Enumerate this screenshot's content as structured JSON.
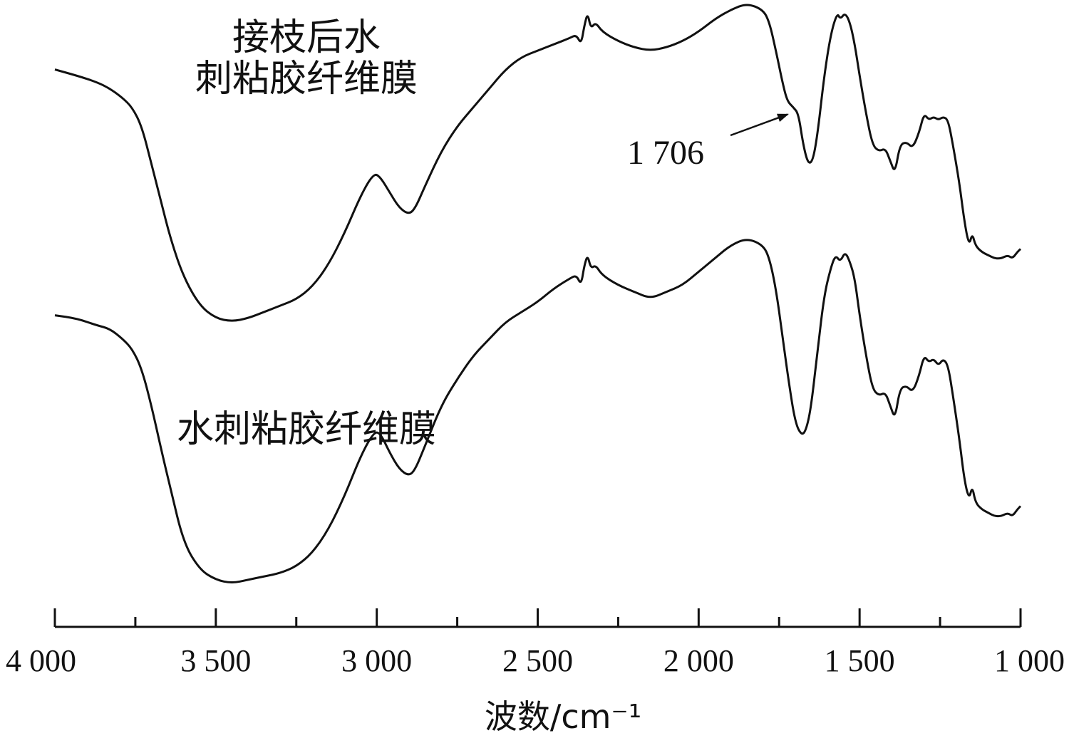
{
  "chart_data": {
    "type": "line",
    "xlabel": "波数/cm⁻¹",
    "xlim": [
      4000,
      1000
    ],
    "x_reversed": true,
    "x_ticks": [
      {
        "value": 4000,
        "label": "4 000"
      },
      {
        "value": 3500,
        "label": "3 500"
      },
      {
        "value": 3000,
        "label": "3 000"
      },
      {
        "value": 2500,
        "label": "2 500"
      },
      {
        "value": 2000,
        "label": "2 000"
      },
      {
        "value": 1500,
        "label": "1 500"
      },
      {
        "value": 1000,
        "label": "1 000"
      }
    ],
    "x_minor_ticks": [
      3750,
      3250,
      2750,
      2250,
      1750,
      1250
    ],
    "y_axis_shown": false,
    "grid": false,
    "series": [
      {
        "name": "接枝后水刺粘胶纤维膜",
        "label_lines": [
          "接枝后水",
          "刺粘胶纤维膜"
        ],
        "color": "#111111",
        "points": [
          [
            4000,
            0.82
          ],
          [
            3930,
            0.8
          ],
          [
            3870,
            0.78
          ],
          [
            3830,
            0.76
          ],
          [
            3790,
            0.73
          ],
          [
            3760,
            0.7
          ],
          [
            3730,
            0.64
          ],
          [
            3700,
            0.52
          ],
          [
            3670,
            0.4
          ],
          [
            3640,
            0.28
          ],
          [
            3600,
            0.16
          ],
          [
            3550,
            0.07
          ],
          [
            3500,
            0.03
          ],
          [
            3450,
            0.02
          ],
          [
            3400,
            0.03
          ],
          [
            3350,
            0.05
          ],
          [
            3300,
            0.07
          ],
          [
            3250,
            0.09
          ],
          [
            3200,
            0.13
          ],
          [
            3150,
            0.2
          ],
          [
            3100,
            0.3
          ],
          [
            3050,
            0.42
          ],
          [
            3010,
            0.49
          ],
          [
            2990,
            0.48
          ],
          [
            2960,
            0.43
          ],
          [
            2930,
            0.38
          ],
          [
            2900,
            0.36
          ],
          [
            2880,
            0.38
          ],
          [
            2850,
            0.45
          ],
          [
            2800,
            0.56
          ],
          [
            2750,
            0.64
          ],
          [
            2700,
            0.7
          ],
          [
            2650,
            0.76
          ],
          [
            2600,
            0.82
          ],
          [
            2550,
            0.86
          ],
          [
            2500,
            0.88
          ],
          [
            2450,
            0.9
          ],
          [
            2400,
            0.92
          ],
          [
            2380,
            0.93
          ],
          [
            2365,
            0.9
          ],
          [
            2355,
            0.96
          ],
          [
            2345,
            1.0
          ],
          [
            2335,
            0.95
          ],
          [
            2320,
            0.97
          ],
          [
            2300,
            0.94
          ],
          [
            2250,
            0.91
          ],
          [
            2200,
            0.89
          ],
          [
            2150,
            0.88
          ],
          [
            2100,
            0.89
          ],
          [
            2050,
            0.91
          ],
          [
            2000,
            0.94
          ],
          [
            1950,
            0.98
          ],
          [
            1900,
            1.01
          ],
          [
            1850,
            1.03
          ],
          [
            1800,
            1.01
          ],
          [
            1780,
            0.97
          ],
          [
            1760,
            0.88
          ],
          [
            1740,
            0.78
          ],
          [
            1725,
            0.72
          ],
          [
            1706,
            0.7
          ],
          [
            1690,
            0.68
          ],
          [
            1675,
            0.58
          ],
          [
            1660,
            0.52
          ],
          [
            1645,
            0.53
          ],
          [
            1630,
            0.62
          ],
          [
            1610,
            0.8
          ],
          [
            1590,
            0.93
          ],
          [
            1570,
            1.0
          ],
          [
            1560,
            0.98
          ],
          [
            1545,
            1.0
          ],
          [
            1530,
            0.97
          ],
          [
            1515,
            0.9
          ],
          [
            1500,
            0.8
          ],
          [
            1480,
            0.68
          ],
          [
            1460,
            0.58
          ],
          [
            1440,
            0.56
          ],
          [
            1420,
            0.57
          ],
          [
            1405,
            0.53
          ],
          [
            1390,
            0.49
          ],
          [
            1375,
            0.58
          ],
          [
            1355,
            0.59
          ],
          [
            1335,
            0.57
          ],
          [
            1315,
            0.62
          ],
          [
            1300,
            0.68
          ],
          [
            1285,
            0.66
          ],
          [
            1270,
            0.67
          ],
          [
            1255,
            0.66
          ],
          [
            1240,
            0.67
          ],
          [
            1225,
            0.66
          ],
          [
            1210,
            0.58
          ],
          [
            1190,
            0.46
          ],
          [
            1175,
            0.34
          ],
          [
            1160,
            0.26
          ],
          [
            1150,
            0.3
          ],
          [
            1140,
            0.26
          ],
          [
            1120,
            0.24
          ],
          [
            1100,
            0.23
          ],
          [
            1080,
            0.22
          ],
          [
            1060,
            0.22
          ],
          [
            1040,
            0.23
          ],
          [
            1025,
            0.22
          ],
          [
            1010,
            0.24
          ],
          [
            1000,
            0.25
          ]
        ]
      },
      {
        "name": "水刺粘胶纤维膜",
        "label_lines": [
          "水刺粘胶纤维膜"
        ],
        "color": "#111111",
        "points": [
          [
            4000,
            0.82
          ],
          [
            3930,
            0.81
          ],
          [
            3870,
            0.79
          ],
          [
            3830,
            0.78
          ],
          [
            3790,
            0.75
          ],
          [
            3760,
            0.72
          ],
          [
            3730,
            0.66
          ],
          [
            3700,
            0.55
          ],
          [
            3670,
            0.42
          ],
          [
            3640,
            0.3
          ],
          [
            3600,
            0.14
          ],
          [
            3550,
            0.06
          ],
          [
            3500,
            0.03
          ],
          [
            3450,
            0.02
          ],
          [
            3400,
            0.03
          ],
          [
            3350,
            0.04
          ],
          [
            3300,
            0.05
          ],
          [
            3250,
            0.07
          ],
          [
            3200,
            0.11
          ],
          [
            3150,
            0.18
          ],
          [
            3100,
            0.28
          ],
          [
            3050,
            0.4
          ],
          [
            3010,
            0.47
          ],
          [
            2990,
            0.47
          ],
          [
            2960,
            0.41
          ],
          [
            2930,
            0.36
          ],
          [
            2900,
            0.34
          ],
          [
            2880,
            0.36
          ],
          [
            2850,
            0.43
          ],
          [
            2800,
            0.55
          ],
          [
            2750,
            0.63
          ],
          [
            2700,
            0.7
          ],
          [
            2650,
            0.75
          ],
          [
            2600,
            0.8
          ],
          [
            2550,
            0.83
          ],
          [
            2500,
            0.86
          ],
          [
            2450,
            0.9
          ],
          [
            2400,
            0.93
          ],
          [
            2380,
            0.94
          ],
          [
            2365,
            0.91
          ],
          [
            2355,
            0.97
          ],
          [
            2345,
            1.0
          ],
          [
            2335,
            0.96
          ],
          [
            2320,
            0.97
          ],
          [
            2300,
            0.94
          ],
          [
            2250,
            0.91
          ],
          [
            2200,
            0.89
          ],
          [
            2150,
            0.87
          ],
          [
            2100,
            0.89
          ],
          [
            2050,
            0.91
          ],
          [
            2000,
            0.95
          ],
          [
            1950,
            0.99
          ],
          [
            1900,
            1.03
          ],
          [
            1850,
            1.05
          ],
          [
            1800,
            1.03
          ],
          [
            1780,
            0.99
          ],
          [
            1760,
            0.9
          ],
          [
            1740,
            0.76
          ],
          [
            1720,
            0.62
          ],
          [
            1700,
            0.5
          ],
          [
            1680,
            0.46
          ],
          [
            1665,
            0.48
          ],
          [
            1650,
            0.55
          ],
          [
            1630,
            0.72
          ],
          [
            1610,
            0.88
          ],
          [
            1590,
            0.96
          ],
          [
            1575,
            1.0
          ],
          [
            1560,
            0.98
          ],
          [
            1545,
            1.01
          ],
          [
            1530,
            0.98
          ],
          [
            1515,
            0.93
          ],
          [
            1500,
            0.82
          ],
          [
            1480,
            0.7
          ],
          [
            1460,
            0.6
          ],
          [
            1440,
            0.58
          ],
          [
            1420,
            0.59
          ],
          [
            1405,
            0.55
          ],
          [
            1390,
            0.51
          ],
          [
            1375,
            0.6
          ],
          [
            1355,
            0.61
          ],
          [
            1335,
            0.59
          ],
          [
            1315,
            0.64
          ],
          [
            1300,
            0.7
          ],
          [
            1285,
            0.68
          ],
          [
            1270,
            0.69
          ],
          [
            1255,
            0.67
          ],
          [
            1240,
            0.69
          ],
          [
            1225,
            0.67
          ],
          [
            1210,
            0.58
          ],
          [
            1190,
            0.45
          ],
          [
            1175,
            0.33
          ],
          [
            1160,
            0.27
          ],
          [
            1150,
            0.31
          ],
          [
            1140,
            0.26
          ],
          [
            1120,
            0.24
          ],
          [
            1100,
            0.23
          ],
          [
            1080,
            0.22
          ],
          [
            1060,
            0.22
          ],
          [
            1040,
            0.23
          ],
          [
            1025,
            0.22
          ],
          [
            1010,
            0.24
          ],
          [
            1000,
            0.25
          ]
        ]
      }
    ],
    "annotations": [
      {
        "text": "1 706",
        "points_to_x": 1706,
        "series": 0
      }
    ]
  }
}
